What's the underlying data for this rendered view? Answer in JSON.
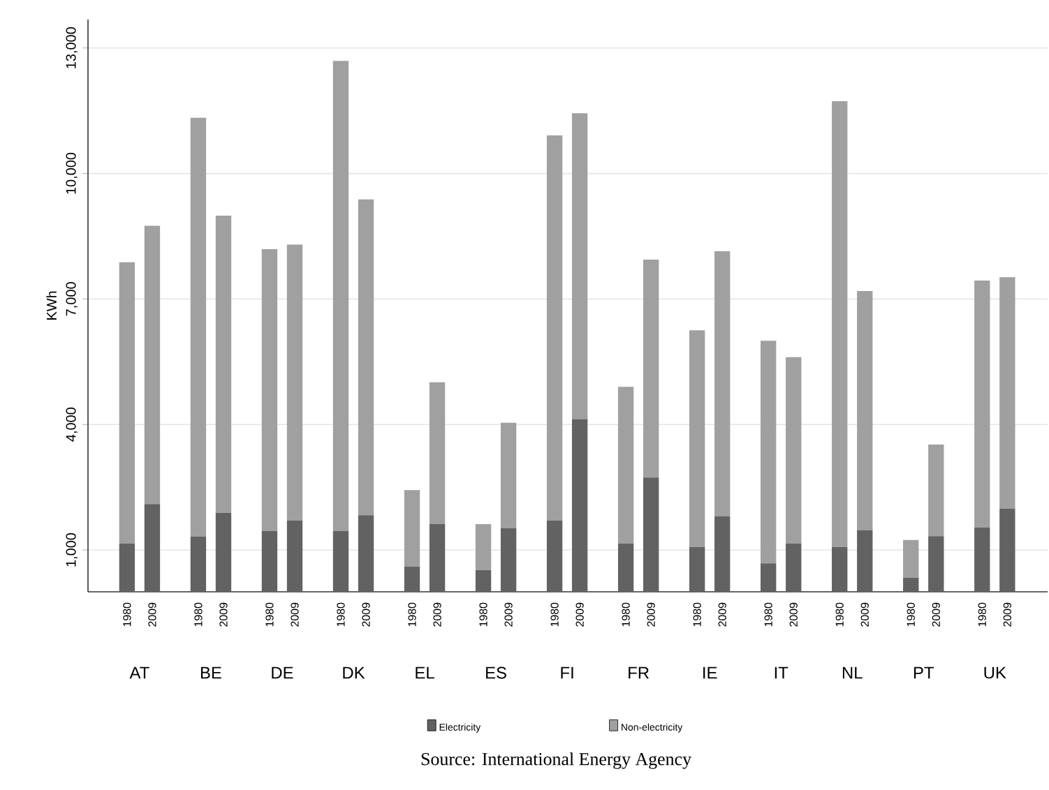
{
  "chart_data": {
    "type": "bar",
    "stacked": true,
    "ylabel": "KWh",
    "categories": [
      "1980",
      "2009",
      "1980",
      "2009",
      "1980",
      "2009",
      "1980",
      "2009",
      "1980",
      "2009",
      "1980",
      "2009",
      "1980",
      "2009",
      "1980",
      "2009",
      "1980",
      "2009",
      "1980",
      "2009",
      "1980",
      "2009",
      "1980",
      "2009",
      "1980",
      "2009"
    ],
    "series": [
      {
        "name": "Electricity",
        "color": "#626262",
        "values": [
          1150,
          2100,
          1320,
          1890,
          1450,
          1700,
          1450,
          1830,
          600,
          1620,
          520,
          1520,
          1700,
          4130,
          1150,
          2730,
          1070,
          1810,
          680,
          1150,
          1070,
          1470,
          340,
          1330,
          1540,
          1990
        ]
      },
      {
        "name": "Non-electricity",
        "color": "#a0a0a0",
        "values": [
          6730,
          6650,
          10010,
          7100,
          6740,
          6600,
          11240,
          7550,
          1830,
          3390,
          1100,
          2520,
          9210,
          7310,
          3750,
          5210,
          5180,
          6330,
          5320,
          4460,
          10660,
          5720,
          900,
          2190,
          5900,
          5530
        ]
      }
    ],
    "ylim": [
      0,
      13680
    ],
    "yticks": [
      {
        "value": 1000,
        "label": "1,000"
      },
      {
        "value": 4000,
        "label": "4,000"
      },
      {
        "value": 7000,
        "label": "7,000"
      },
      {
        "value": 10000,
        "label": "10,000"
      },
      {
        "value": 13000,
        "label": "13,000"
      }
    ],
    "grid": "y",
    "legend": "bottom",
    "annotations": [
      "AT",
      "BE",
      "DE",
      "DK",
      "EL",
      "ES",
      "FI",
      "FR",
      "IE",
      "IT",
      "NL",
      "PT",
      "UK",
      "Source: International Energy Agency"
    ]
  }
}
